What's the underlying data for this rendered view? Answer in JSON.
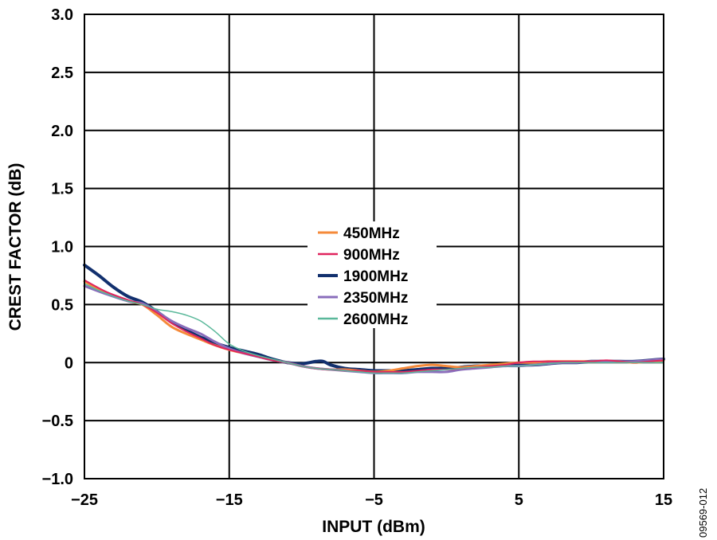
{
  "chart_data": {
    "type": "line",
    "title": "",
    "xlabel": "INPUT (dBm)",
    "ylabel": "CREST FACTOR (dB)",
    "xlim": [
      -25,
      15
    ],
    "ylim": [
      -1.0,
      3.0
    ],
    "x_ticks": [
      -25,
      -15,
      -5,
      5,
      15
    ],
    "x_tick_labels": [
      "−25",
      "−15",
      "−5",
      "5",
      "15"
    ],
    "y_ticks": [
      -1.0,
      -0.5,
      0,
      0.5,
      1.0,
      1.5,
      2.0,
      2.5,
      3.0
    ],
    "y_tick_labels": [
      "−1.0",
      "−0.5",
      "0",
      "0.5",
      "1.0",
      "1.5",
      "2.0",
      "2.5",
      "3.0"
    ],
    "grid": true,
    "legend_position": "center",
    "figure_code": "09569-012",
    "series": [
      {
        "name": "450MHz",
        "color": "#f58a3a",
        "width": 3,
        "points": [
          [
            -25,
            0.7
          ],
          [
            -23.5,
            0.6
          ],
          [
            -22,
            0.53
          ],
          [
            -21,
            0.5
          ],
          [
            -20,
            0.41
          ],
          [
            -19,
            0.31
          ],
          [
            -18,
            0.25
          ],
          [
            -17,
            0.2
          ],
          [
            -16,
            0.15
          ],
          [
            -15,
            0.11
          ],
          [
            -14,
            0.08
          ],
          [
            -13,
            0.05
          ],
          [
            -12,
            0.02
          ],
          [
            -11,
            0.0
          ],
          [
            -10,
            -0.03
          ],
          [
            -9,
            -0.05
          ],
          [
            -8,
            -0.06
          ],
          [
            -7,
            -0.06
          ],
          [
            -6,
            -0.07
          ],
          [
            -5,
            -0.08
          ],
          [
            -4,
            -0.07
          ],
          [
            -3,
            -0.05
          ],
          [
            -2,
            -0.03
          ],
          [
            -1,
            -0.02
          ],
          [
            0,
            -0.03
          ],
          [
            1,
            -0.04
          ],
          [
            2,
            -0.03
          ],
          [
            3,
            -0.02
          ],
          [
            4,
            -0.01
          ],
          [
            5,
            0.0
          ],
          [
            6,
            0.0
          ],
          [
            7,
            0.01
          ],
          [
            8,
            0.01
          ],
          [
            9,
            0.01
          ],
          [
            10,
            0.01
          ],
          [
            11,
            0.01
          ],
          [
            12,
            0.01
          ],
          [
            13,
            0.0
          ],
          [
            14,
            0.01
          ],
          [
            15,
            0.02
          ]
        ]
      },
      {
        "name": "900MHz",
        "color": "#e0245e",
        "width": 2,
        "points": [
          [
            -25,
            0.71
          ],
          [
            -23.5,
            0.61
          ],
          [
            -22,
            0.54
          ],
          [
            -21,
            0.5
          ],
          [
            -20,
            0.43
          ],
          [
            -19,
            0.34
          ],
          [
            -18,
            0.27
          ],
          [
            -17,
            0.21
          ],
          [
            -16,
            0.15
          ],
          [
            -15,
            0.11
          ],
          [
            -14,
            0.08
          ],
          [
            -13,
            0.05
          ],
          [
            -12,
            0.02
          ],
          [
            -11,
            0.0
          ],
          [
            -10,
            -0.03
          ],
          [
            -9,
            -0.05
          ],
          [
            -8,
            -0.06
          ],
          [
            -7,
            -0.07
          ],
          [
            -6,
            -0.07
          ],
          [
            -5,
            -0.08
          ],
          [
            -4,
            -0.08
          ],
          [
            -3,
            -0.08
          ],
          [
            -2,
            -0.07
          ],
          [
            -1,
            -0.06
          ],
          [
            0,
            -0.06
          ],
          [
            1,
            -0.05
          ],
          [
            2,
            -0.04
          ],
          [
            3,
            -0.03
          ],
          [
            4,
            -0.02
          ],
          [
            5,
            0.0
          ],
          [
            6,
            0.01
          ],
          [
            7,
            0.01
          ],
          [
            8,
            0.01
          ],
          [
            9,
            0.01
          ],
          [
            10,
            0.01
          ],
          [
            11,
            0.02
          ],
          [
            12,
            0.01
          ],
          [
            13,
            0.0
          ],
          [
            14,
            0.01
          ],
          [
            15,
            0.02
          ]
        ]
      },
      {
        "name": "1900MHz",
        "color": "#12306e",
        "width": 4,
        "points": [
          [
            -25,
            0.84
          ],
          [
            -24,
            0.75
          ],
          [
            -23,
            0.65
          ],
          [
            -22,
            0.57
          ],
          [
            -21,
            0.52
          ],
          [
            -20,
            0.44
          ],
          [
            -19,
            0.35
          ],
          [
            -18,
            0.28
          ],
          [
            -17,
            0.22
          ],
          [
            -16,
            0.17
          ],
          [
            -15,
            0.13
          ],
          [
            -14,
            0.1
          ],
          [
            -13,
            0.07
          ],
          [
            -12,
            0.03
          ],
          [
            -11,
            0.0
          ],
          [
            -10,
            -0.01
          ],
          [
            -9,
            0.01
          ],
          [
            -8.5,
            0.01
          ],
          [
            -8,
            -0.02
          ],
          [
            -7,
            -0.05
          ],
          [
            -6,
            -0.06
          ],
          [
            -5,
            -0.07
          ],
          [
            -4,
            -0.07
          ],
          [
            -3,
            -0.07
          ],
          [
            -2,
            -0.06
          ],
          [
            -1,
            -0.05
          ],
          [
            0,
            -0.05
          ],
          [
            1,
            -0.04
          ],
          [
            2,
            -0.03
          ],
          [
            3,
            -0.03
          ],
          [
            4,
            -0.02
          ],
          [
            5,
            -0.02
          ],
          [
            6,
            -0.02
          ],
          [
            7,
            -0.01
          ],
          [
            8,
            0.0
          ],
          [
            9,
            0.0
          ],
          [
            10,
            0.01
          ],
          [
            11,
            0.01
          ],
          [
            12,
            0.01
          ],
          [
            13,
            0.01
          ],
          [
            14,
            0.02
          ],
          [
            15,
            0.03
          ]
        ]
      },
      {
        "name": "2350MHz",
        "color": "#8a6dbb",
        "width": 3,
        "points": [
          [
            -25,
            0.66
          ],
          [
            -23.5,
            0.59
          ],
          [
            -22,
            0.53
          ],
          [
            -21,
            0.51
          ],
          [
            -20,
            0.44
          ],
          [
            -19,
            0.36
          ],
          [
            -18,
            0.3
          ],
          [
            -17,
            0.25
          ],
          [
            -16,
            0.18
          ],
          [
            -15,
            0.12
          ],
          [
            -14,
            0.08
          ],
          [
            -13,
            0.05
          ],
          [
            -12,
            0.02
          ],
          [
            -11,
            0.0
          ],
          [
            -10,
            -0.03
          ],
          [
            -9,
            -0.05
          ],
          [
            -8,
            -0.06
          ],
          [
            -7,
            -0.07
          ],
          [
            -6,
            -0.08
          ],
          [
            -5,
            -0.09
          ],
          [
            -4,
            -0.09
          ],
          [
            -3,
            -0.09
          ],
          [
            -2,
            -0.08
          ],
          [
            -1,
            -0.08
          ],
          [
            0,
            -0.08
          ],
          [
            1,
            -0.06
          ],
          [
            2,
            -0.05
          ],
          [
            3,
            -0.04
          ],
          [
            4,
            -0.03
          ],
          [
            5,
            -0.03
          ],
          [
            6,
            -0.02
          ],
          [
            7,
            -0.01
          ],
          [
            8,
            0.0
          ],
          [
            9,
            0.0
          ],
          [
            10,
            0.01
          ],
          [
            11,
            0.01
          ],
          [
            12,
            0.01
          ],
          [
            13,
            0.01
          ],
          [
            14,
            0.02
          ],
          [
            15,
            0.03
          ]
        ]
      },
      {
        "name": "2600MHz",
        "color": "#5ab89a",
        "width": 1.5,
        "points": [
          [
            -25,
            0.68
          ],
          [
            -24,
            0.62
          ],
          [
            -23,
            0.57
          ],
          [
            -22,
            0.53
          ],
          [
            -21,
            0.5
          ],
          [
            -20,
            0.46
          ],
          [
            -19,
            0.44
          ],
          [
            -18,
            0.41
          ],
          [
            -17,
            0.36
          ],
          [
            -16,
            0.27
          ],
          [
            -15,
            0.16
          ],
          [
            -14,
            0.1
          ],
          [
            -13,
            0.06
          ],
          [
            -12,
            0.03
          ],
          [
            -11,
            0.0
          ],
          [
            -10,
            -0.03
          ],
          [
            -9,
            -0.05
          ],
          [
            -8,
            -0.06
          ],
          [
            -7,
            -0.07
          ],
          [
            -6,
            -0.08
          ],
          [
            -5,
            -0.09
          ],
          [
            -4,
            -0.09
          ],
          [
            -3,
            -0.09
          ],
          [
            -2,
            -0.08
          ],
          [
            -1,
            -0.07
          ],
          [
            0,
            -0.06
          ],
          [
            1,
            -0.05
          ],
          [
            2,
            -0.04
          ],
          [
            3,
            -0.04
          ],
          [
            4,
            -0.03
          ],
          [
            5,
            -0.03
          ],
          [
            6,
            -0.02
          ],
          [
            7,
            -0.01
          ],
          [
            8,
            0.0
          ],
          [
            9,
            0.0
          ],
          [
            10,
            0.0
          ],
          [
            11,
            0.0
          ],
          [
            12,
            0.0
          ],
          [
            13,
            0.0
          ],
          [
            14,
            0.0
          ],
          [
            15,
            0.0
          ]
        ]
      }
    ]
  }
}
